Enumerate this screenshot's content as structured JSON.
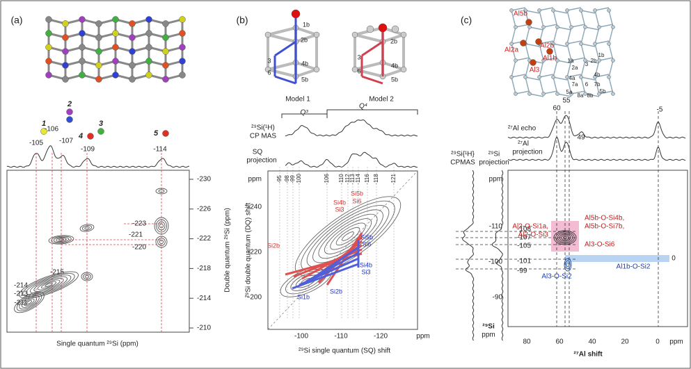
{
  "panel_a": {
    "label": "(a)",
    "peaks": [
      {
        "number": "1",
        "shift": "-105"
      },
      {
        "number": "2",
        "shift": "-106"
      },
      {
        "number": "3",
        "shift": "-107"
      },
      {
        "number": "4",
        "shift": "-109"
      },
      {
        "number": "5",
        "shift": "-114"
      }
    ],
    "y_ticks": [
      "-230",
      "-226",
      "-222",
      "-218",
      "-214",
      "-210"
    ],
    "annotations": [
      "-223",
      "-221",
      "-220",
      "-215",
      "-214",
      "-213",
      "-211"
    ],
    "y_axis_title": "Double quantum ²⁹Si (ppm)",
    "x_axis_title": "Single quantum ²⁹Si (ppm)"
  },
  "panel_b": {
    "label": "(b)",
    "models": [
      {
        "name": "Model 1",
        "atoms": [
          "1b",
          "2b",
          "3",
          "6",
          "4b",
          "5b"
        ]
      },
      {
        "name": "Model 2",
        "atoms": [
          "2b",
          "3",
          "6",
          "4b",
          "5b"
        ]
      }
    ],
    "q_labels": [
      "Q³",
      "Q⁴"
    ],
    "cp_mas_label": [
      "²⁹Si(¹H)",
      "CP MAS"
    ],
    "projection_label": [
      "SQ",
      "projection"
    ],
    "peak_ticks": [
      "-95",
      "-98",
      "-99",
      "-100",
      "-106",
      "-110",
      "-112",
      "-113",
      "-114",
      "-116",
      "-118",
      "-121"
    ],
    "y_ticks": [
      "ppm",
      "-240",
      "-220",
      "-200"
    ],
    "x_ticks": [
      "-100",
      "-110",
      "-120",
      "ppm"
    ],
    "y_axis_title": "²⁹Si double quantum (DQ) shift",
    "x_axis_title": "²⁹Si single quantum (SQ) shift",
    "model2_labels": [
      "Si4b",
      "Si3",
      "Si5b",
      "Si6",
      "Si2b"
    ],
    "model1_labels": [
      "Si5b",
      "Si6",
      "Si4b",
      "Si3",
      "Si1b",
      "Si2b"
    ]
  },
  "panel_c": {
    "label": "(c)",
    "al_sites": [
      "Al5b",
      "Al2b",
      "Al2a",
      "Al1b",
      "Al3"
    ],
    "si_sites": [
      "1a",
      "2a",
      "3",
      "2b",
      "1b",
      "4a",
      "4b",
      "7a",
      "6",
      "7b",
      "5a",
      "8a",
      "8b",
      "5b"
    ],
    "al_peaks": [
      "60",
      "55",
      "49",
      "-5"
    ],
    "echo_label": "²⁷Al echo",
    "projection_label": [
      "²⁷Al",
      "projection"
    ],
    "si_cpmas_label": [
      "²⁹Si{¹H}",
      "CPMAS"
    ],
    "si_projection_label": [
      "²⁹Si",
      "projection"
    ],
    "y_ticks": [
      "ppm",
      "-110",
      "-100",
      "-90"
    ],
    "si_peaks": [
      "-108",
      "-107",
      "-105",
      "-101",
      "-99"
    ],
    "x_ticks": [
      "80",
      "60",
      "40",
      "20",
      "0",
      "ppm"
    ],
    "x_axis_title": "²⁷Al shift",
    "y_axis_title": [
      "²⁹Si",
      "ppm"
    ],
    "red_annotations": [
      "Al2-O-Si1a,",
      "Al2-O-Si3",
      "Al5b-O-Si4b,",
      "Al5b-O-Si7b,",
      "Al3-O-Si6"
    ],
    "blue_annotations": [
      "Al1b-O-Si2",
      "Al3-O-Si2"
    ],
    "zero_label": "0"
  }
}
